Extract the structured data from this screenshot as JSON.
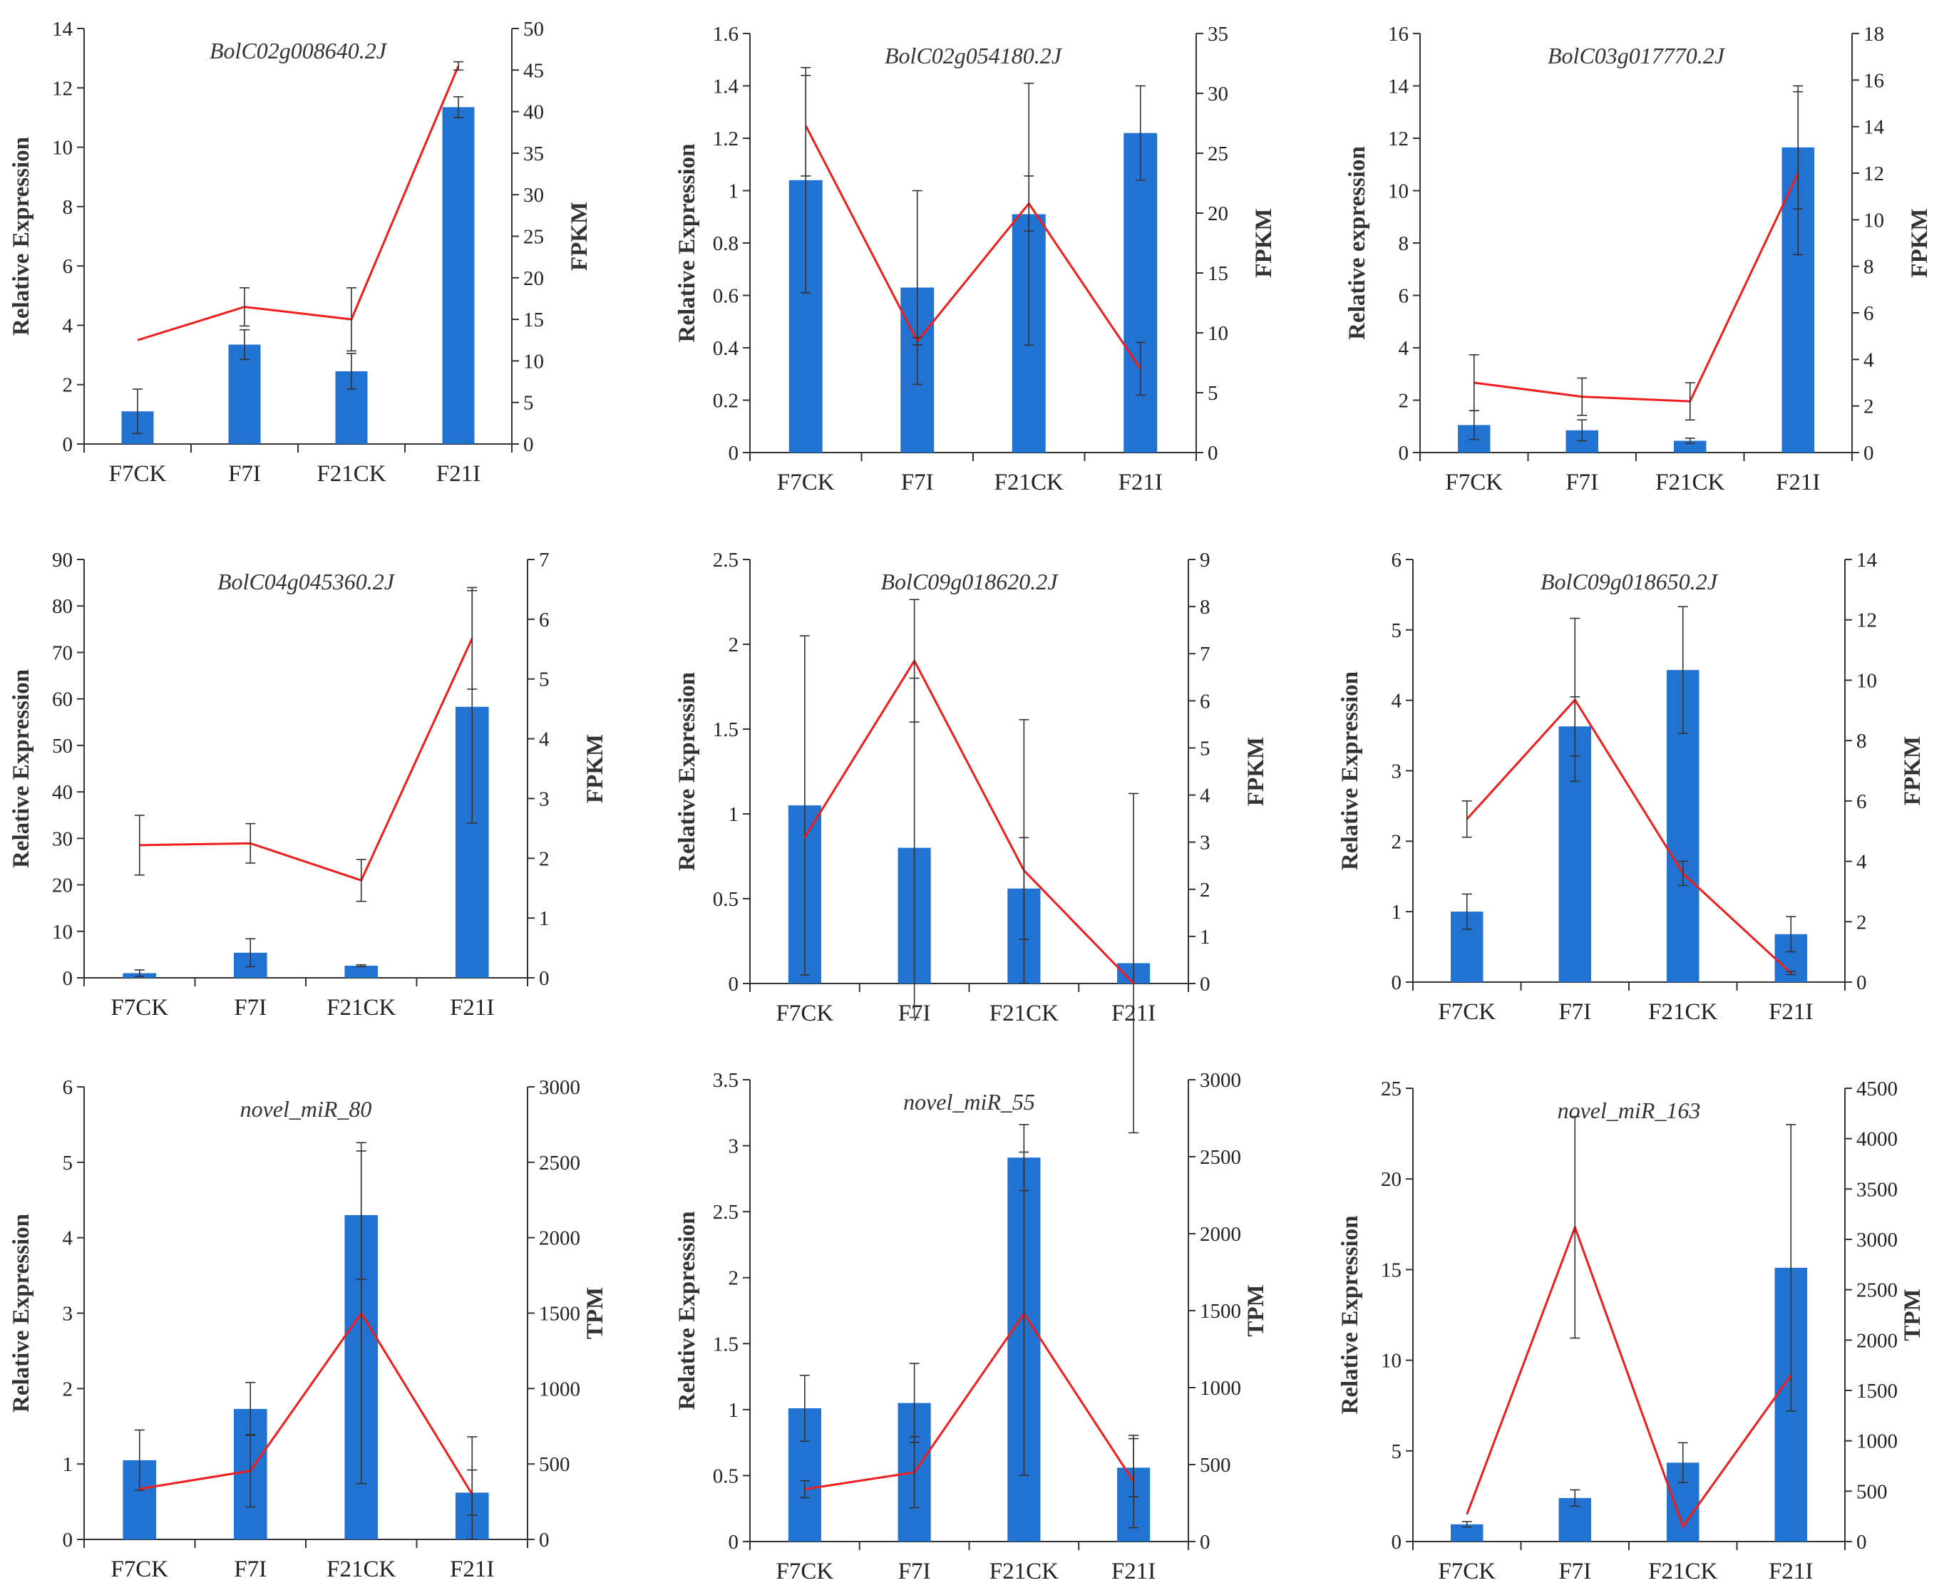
{
  "colors": {
    "bar": "#2272D1",
    "line": "#F01D1D",
    "axis": "#333333",
    "error": "#333333"
  },
  "chart_data": [
    {
      "type": "bar",
      "title": "BolC02g008640.2J",
      "ylabel": "Relative Expression",
      "y2label": "FPKM",
      "categories": [
        "F7CK",
        "F7I",
        "F21CK",
        "F21I"
      ],
      "ylim": [
        0,
        14
      ],
      "yticks": [
        0,
        2,
        4,
        6,
        8,
        10,
        12,
        14
      ],
      "y2lim": [
        0,
        50
      ],
      "y2ticks": [
        0,
        5,
        10,
        15,
        20,
        25,
        30,
        35,
        40,
        45,
        50
      ],
      "bars": [
        1.1,
        3.35,
        2.45,
        11.35
      ],
      "bar_err": [
        0.75,
        0.5,
        0.6,
        0.35
      ],
      "line": [
        12.5,
        16.5,
        15,
        45.5
      ],
      "line_err": [
        0,
        2.3,
        3.8,
        0.5
      ]
    },
    {
      "type": "bar",
      "title": "BolC02g054180.2J",
      "ylabel": "Relative Expression",
      "y2label": "FPKM",
      "categories": [
        "F7CK",
        "F7I",
        "F21CK",
        "F21I"
      ],
      "ylim": [
        0,
        1.6
      ],
      "yticks": [
        0,
        0.2,
        0.4,
        0.6,
        0.8,
        1,
        1.2,
        1.4,
        1.6
      ],
      "y2lim": [
        0,
        35
      ],
      "y2ticks": [
        0,
        5,
        10,
        15,
        20,
        25,
        30,
        35
      ],
      "bars": [
        1.04,
        0.63,
        0.91,
        1.22
      ],
      "bar_err": [
        0.43,
        0.37,
        0.5,
        0.18
      ],
      "line": [
        27.3,
        9.3,
        20.8,
        7
      ],
      "line_err": [
        4.2,
        0.3,
        2.3,
        2.2
      ]
    },
    {
      "type": "bar",
      "title": "BolC03g017770.2J",
      "ylabel": "Relative expression",
      "y2label": "FPKM",
      "categories": [
        "F7CK",
        "F7I",
        "F21CK",
        "F21I"
      ],
      "ylim": [
        0,
        16
      ],
      "yticks": [
        0,
        2,
        4,
        6,
        8,
        10,
        12,
        14,
        16
      ],
      "y2lim": [
        0,
        18
      ],
      "y2ticks": [
        0,
        2,
        4,
        6,
        8,
        10,
        12,
        14,
        16,
        18
      ],
      "bars": [
        1.05,
        0.85,
        0.45,
        11.65
      ],
      "bar_err": [
        0.55,
        0.4,
        0.1,
        2.35
      ],
      "line": [
        3,
        2.4,
        2.2,
        12
      ],
      "line_err": [
        1.2,
        0.8,
        0.8,
        3.5
      ]
    },
    {
      "type": "bar",
      "title": "BolC04g045360.2J",
      "ylabel": "Relative Expression",
      "y2label": "FPKM",
      "categories": [
        "F7CK",
        "F7I",
        "F21CK",
        "F21I"
      ],
      "ylim": [
        0,
        90
      ],
      "yticks": [
        0,
        10,
        20,
        30,
        40,
        50,
        60,
        70,
        80,
        90
      ],
      "y2lim": [
        0,
        7
      ],
      "y2ticks": [
        0,
        1,
        2,
        3,
        4,
        5,
        6,
        7
      ],
      "bars": [
        1,
        5.4,
        2.6,
        58.3
      ],
      "bar_err": [
        0.7,
        3,
        0.2,
        25
      ],
      "line": [
        2.22,
        2.25,
        1.63,
        5.68
      ],
      "line_err": [
        0.5,
        0.33,
        0.35,
        0.85
      ]
    },
    {
      "type": "bar",
      "title": "BolC09g018620.2J",
      "ylabel": "Relative Expression",
      "y2label": "FPKM",
      "categories": [
        "F7CK",
        "F7I",
        "F21CK",
        "F21I"
      ],
      "ylim": [
        0,
        2.5
      ],
      "yticks": [
        0,
        0.5,
        1,
        1.5,
        2,
        2.5
      ],
      "y2lim": [
        0,
        9
      ],
      "y2ticks": [
        0,
        1,
        2,
        3,
        4,
        5,
        6,
        7,
        8,
        9
      ],
      "bars": [
        1.05,
        0.8,
        0.56,
        0.12
      ],
      "bar_err": [
        1,
        1,
        0.3,
        1
      ],
      "line": [
        3.1,
        6.85,
        2.4,
        0
      ],
      "line_err": [
        0,
        1.3,
        3.2,
        0
      ]
    },
    {
      "type": "bar",
      "title": "BolC09g018650.2J",
      "ylabel": "Relative Expression",
      "y2label": "FPKM",
      "categories": [
        "F7CK",
        "F7I",
        "F21CK",
        "F21I"
      ],
      "ylim": [
        0,
        6
      ],
      "yticks": [
        0,
        1,
        2,
        3,
        4,
        5,
        6
      ],
      "y2lim": [
        0,
        14
      ],
      "y2ticks": [
        0,
        2,
        4,
        6,
        8,
        10,
        12,
        14
      ],
      "bars": [
        1,
        3.63,
        4.43,
        0.68
      ],
      "bar_err": [
        0.25,
        0.42,
        0.9,
        0.25
      ],
      "line": [
        5.4,
        9.35,
        3.6,
        0.3
      ],
      "line_err": [
        0.6,
        2.7,
        0.4,
        0.05
      ]
    },
    {
      "type": "bar",
      "title": "novel_miR_80",
      "ylabel": "Relative Expression",
      "y2label": "TPM",
      "categories": [
        "F7CK",
        "F7I",
        "F21CK",
        "F21I"
      ],
      "ylim": [
        0,
        6
      ],
      "yticks": [
        0,
        1,
        2,
        3,
        4,
        5,
        6
      ],
      "y2lim": [
        0,
        3000
      ],
      "y2ticks": [
        0,
        500,
        1000,
        1500,
        2000,
        2500,
        3000
      ],
      "bars": [
        1.05,
        1.73,
        4.3,
        0.62
      ],
      "bar_err": [
        0.4,
        0.35,
        0.85,
        0.3
      ],
      "line": [
        335,
        455,
        1500,
        300
      ],
      "line_err": [
        0,
        240,
        1130,
        380
      ]
    },
    {
      "type": "bar",
      "title": "novel_miR_55",
      "ylabel": "Relative Expression",
      "y2label": "TPM",
      "categories": [
        "F7CK",
        "F7I",
        "F21CK",
        "F21I"
      ],
      "ylim": [
        0,
        3.5
      ],
      "yticks": [
        0,
        0.5,
        1,
        1.5,
        2,
        2.5,
        3,
        3.5
      ],
      "y2lim": [
        0,
        3000
      ],
      "y2ticks": [
        0,
        500,
        1000,
        1500,
        2000,
        2500,
        3000
      ],
      "bars": [
        1.01,
        1.05,
        2.91,
        0.56
      ],
      "bar_err": [
        0.25,
        0.3,
        0.25,
        0.22
      ],
      "line": [
        340,
        450,
        1480,
        390
      ],
      "line_err": [
        55,
        230,
        1050,
        300
      ]
    },
    {
      "type": "bar",
      "title": "novel_miR_163",
      "ylabel": "Relative Expression",
      "y2label": "TPM",
      "categories": [
        "F7CK",
        "F7I",
        "F21CK",
        "F21I"
      ],
      "ylim": [
        0,
        25
      ],
      "yticks": [
        0,
        5,
        10,
        15,
        20,
        25
      ],
      "y2lim": [
        0,
        4500
      ],
      "y2ticks": [
        0,
        500,
        1000,
        1500,
        2000,
        2500,
        3000,
        3500,
        4000,
        4500
      ],
      "bars": [
        0.95,
        2.4,
        4.35,
        15.1
      ],
      "bar_err": [
        0.15,
        0.45,
        1.1,
        7.9
      ],
      "line": [
        270,
        3120,
        150,
        1650
      ],
      "line_err": [
        0,
        1100,
        0,
        0
      ]
    }
  ]
}
